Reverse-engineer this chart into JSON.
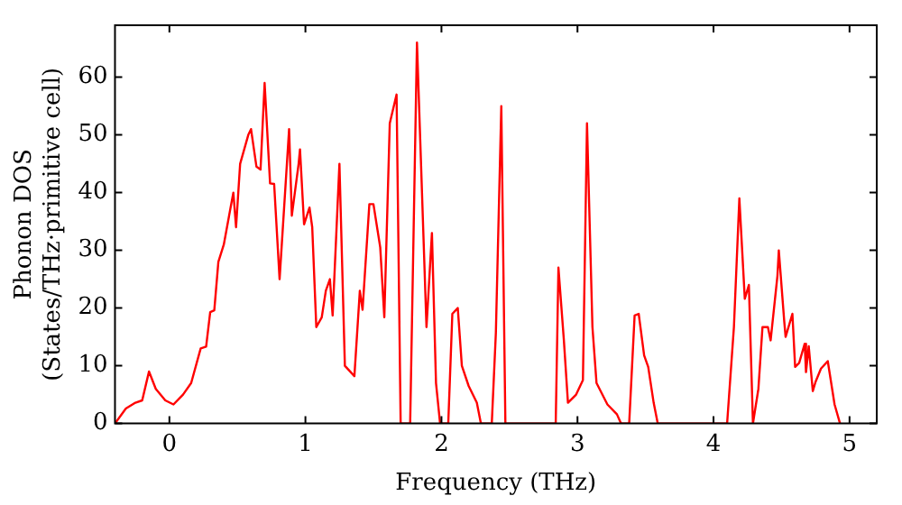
{
  "chart_data": {
    "type": "line",
    "xlabel": "Frequency (THz)",
    "ylabel": "Phonon DOS\n(States/THz·primitive cell)",
    "xlim": [
      -0.4,
      5.2
    ],
    "ylim": [
      0,
      69
    ],
    "xticks": [
      0,
      1,
      2,
      3,
      4,
      5
    ],
    "yticks": [
      0,
      10,
      20,
      30,
      40,
      50,
      60
    ],
    "grid": false,
    "legend": false,
    "marker": "none",
    "line_style": "solid",
    "series": [
      {
        "color": "#ff0000",
        "x": [
          -0.4,
          -0.32,
          -0.25,
          -0.2,
          -0.16,
          -0.15,
          -0.1,
          -0.03,
          0.03,
          0.1,
          0.16,
          0.23,
          0.27,
          0.3,
          0.33,
          0.36,
          0.4,
          0.47,
          0.49,
          0.52,
          0.58,
          0.6,
          0.64,
          0.67,
          0.7,
          0.74,
          0.77,
          0.81,
          0.88,
          0.9,
          0.95,
          0.96,
          0.99,
          1.03,
          1.05,
          1.08,
          1.12,
          1.15,
          1.18,
          1.2,
          1.25,
          1.29,
          1.36,
          1.4,
          1.42,
          1.47,
          1.5,
          1.55,
          1.58,
          1.62,
          1.67,
          1.7,
          1.77,
          1.82,
          1.89,
          1.93,
          1.96,
          1.99,
          2.05,
          2.08,
          2.12,
          2.15,
          2.2,
          2.26,
          2.29,
          2.37,
          2.4,
          2.44,
          2.47,
          2.84,
          2.86,
          2.9,
          2.93,
          2.99,
          3.04,
          3.07,
          3.11,
          3.14,
          3.22,
          3.29,
          3.32,
          3.38,
          3.42,
          3.45,
          3.49,
          3.52,
          3.56,
          3.59,
          4.1,
          4.15,
          4.19,
          4.23,
          4.26,
          4.29,
          4.33,
          4.36,
          4.4,
          4.42,
          4.47,
          4.48,
          4.52,
          4.53,
          4.58,
          4.6,
          4.63,
          4.67,
          4.68,
          4.7,
          4.73,
          4.75,
          4.79,
          4.84,
          4.89,
          4.93
        ],
        "values": [
          0,
          2.6,
          3.6,
          4,
          8,
          9,
          6,
          4,
          3.3,
          5,
          7,
          13,
          13.3,
          19.3,
          19.6,
          28,
          31,
          40,
          34,
          45,
          50,
          51,
          44.5,
          44,
          59,
          41.6,
          41.5,
          25,
          51,
          36,
          45,
          47.5,
          34.5,
          37.4,
          34,
          16.7,
          18.4,
          23,
          25,
          18.7,
          45,
          10,
          8.2,
          23,
          19.7,
          38,
          38,
          30.5,
          18.4,
          52,
          57,
          0,
          0,
          66,
          16.7,
          33,
          7,
          0,
          0,
          19,
          20,
          10,
          6.5,
          3.6,
          0,
          0,
          15.7,
          55,
          0,
          0,
          27,
          14.4,
          3.6,
          5,
          7.5,
          52,
          16.7,
          7,
          3.3,
          1.6,
          0,
          0,
          18.7,
          19,
          11.8,
          9.8,
          3.6,
          0,
          0,
          16.7,
          39,
          21.6,
          24,
          0,
          6,
          16.7,
          16.7,
          14.4,
          25.6,
          30,
          17.7,
          15,
          19,
          9.8,
          10.5,
          13.8,
          8.9,
          13.4,
          5.6,
          7.2,
          9.5,
          10.8,
          3.3,
          0
        ]
      }
    ]
  }
}
